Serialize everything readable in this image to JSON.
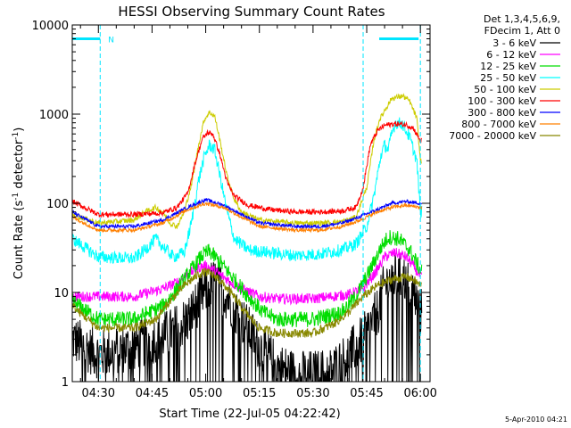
{
  "chart_data": {
    "type": "line",
    "title": "HESSI Observing Summary Count Rates",
    "xlabel": "Start Time (22-Jul-05 04:22:42)",
    "ylabel_main": "Count Rate (s",
    "ylabel_sup1": "-1",
    "ylabel_mid": " detector",
    "ylabel_sup2": "-1",
    "ylabel_end": ")",
    "yscale": "log",
    "ylim": [
      1,
      10000
    ],
    "xlim_minutes": [
      -7.3,
      92.7
    ],
    "x_ticks": [
      {
        "minute": 0,
        "label": "04:30"
      },
      {
        "minute": 15,
        "label": "04:45"
      },
      {
        "minute": 30,
        "label": "05:00"
      },
      {
        "minute": 45,
        "label": "05:15"
      },
      {
        "minute": 60,
        "label": "05:30"
      },
      {
        "minute": 75,
        "label": "05:45"
      },
      {
        "minute": 90,
        "label": "06:00"
      }
    ],
    "y_ticks": [
      {
        "value": 1,
        "label": "1"
      },
      {
        "value": 10,
        "label": "10"
      },
      {
        "value": 100,
        "label": "100"
      },
      {
        "value": 1000,
        "label": "1000"
      },
      {
        "value": 10000,
        "label": "10000"
      }
    ],
    "legend": {
      "header_line1": "Det 1,3,4,5,6,9,",
      "header_line2": "FDecim 1, Att 0",
      "placement": "right"
    },
    "markers": {
      "night_label": "N",
      "night_bars": [
        [
          -7.3,
          0.5
        ],
        [
          78.5,
          89.5
        ]
      ],
      "dashed_lines": [
        -7.3,
        0.5,
        74.0,
        90.0
      ],
      "level": 7000
    },
    "series": [
      {
        "name": "3 - 6 keV",
        "color": "#000000",
        "noise": 0.28,
        "points": [
          [
            -7.3,
            3
          ],
          [
            0,
            2
          ],
          [
            10,
            2.5
          ],
          [
            20,
            3.5
          ],
          [
            25,
            5
          ],
          [
            28,
            8
          ],
          [
            31,
            12
          ],
          [
            33,
            13
          ],
          [
            36,
            9
          ],
          [
            40,
            5
          ],
          [
            45,
            2.5
          ],
          [
            50,
            1.5
          ],
          [
            55,
            1.2
          ],
          [
            60,
            1.2
          ],
          [
            65,
            1.3
          ],
          [
            70,
            2
          ],
          [
            74,
            3
          ],
          [
            78,
            6
          ],
          [
            80,
            12
          ],
          [
            83,
            15
          ],
          [
            86,
            14
          ],
          [
            88,
            10
          ],
          [
            90,
            6
          ]
        ]
      },
      {
        "name": "6 - 12 keV",
        "color": "#ff00ff",
        "noise": 0.06,
        "points": [
          [
            -7.3,
            9
          ],
          [
            0,
            9
          ],
          [
            10,
            9
          ],
          [
            18,
            11
          ],
          [
            22,
            13
          ],
          [
            25,
            16
          ],
          [
            28,
            19
          ],
          [
            30,
            20
          ],
          [
            32,
            18
          ],
          [
            36,
            14
          ],
          [
            40,
            11
          ],
          [
            45,
            9
          ],
          [
            50,
            8.5
          ],
          [
            60,
            8.5
          ],
          [
            70,
            9.5
          ],
          [
            74,
            11
          ],
          [
            78,
            18
          ],
          [
            80,
            25
          ],
          [
            83,
            28
          ],
          [
            86,
            25
          ],
          [
            88,
            20
          ],
          [
            90,
            15
          ]
        ]
      },
      {
        "name": "12 - 25 keV",
        "color": "#00dd00",
        "noise": 0.09,
        "points": [
          [
            -7.3,
            8
          ],
          [
            0,
            5
          ],
          [
            10,
            5
          ],
          [
            18,
            7
          ],
          [
            22,
            11
          ],
          [
            26,
            18
          ],
          [
            29,
            26
          ],
          [
            31,
            29
          ],
          [
            34,
            22
          ],
          [
            38,
            14
          ],
          [
            42,
            9
          ],
          [
            46,
            6
          ],
          [
            50,
            5
          ],
          [
            60,
            5
          ],
          [
            68,
            6
          ],
          [
            72,
            9
          ],
          [
            76,
            18
          ],
          [
            79,
            32
          ],
          [
            81,
            42
          ],
          [
            84,
            40
          ],
          [
            87,
            30
          ],
          [
            90,
            18
          ]
        ]
      },
      {
        "name": "25 - 50 keV",
        "color": "#00ffff",
        "noise": 0.07,
        "points": [
          [
            -7.3,
            40
          ],
          [
            0,
            25
          ],
          [
            10,
            24
          ],
          [
            13,
            30
          ],
          [
            16,
            40
          ],
          [
            18,
            33
          ],
          [
            21,
            25
          ],
          [
            24,
            28
          ],
          [
            26,
            60
          ],
          [
            28,
            180
          ],
          [
            29.5,
            320
          ],
          [
            31,
            450
          ],
          [
            32.5,
            400
          ],
          [
            34,
            200
          ],
          [
            36,
            80
          ],
          [
            38,
            40
          ],
          [
            42,
            30
          ],
          [
            48,
            28
          ],
          [
            55,
            26
          ],
          [
            62,
            27
          ],
          [
            68,
            30
          ],
          [
            72,
            35
          ],
          [
            75,
            55
          ],
          [
            77,
            120
          ],
          [
            79,
            350
          ],
          [
            80,
            450
          ],
          [
            81,
            400
          ],
          [
            82,
            600
          ],
          [
            83,
            800
          ],
          [
            85,
            780
          ],
          [
            87,
            550
          ],
          [
            89,
            300
          ],
          [
            90,
            80
          ]
        ]
      },
      {
        "name": "50 - 100 keV",
        "color": "#cccc00",
        "noise": 0.03,
        "points": [
          [
            -7.3,
            75
          ],
          [
            0,
            60
          ],
          [
            10,
            65
          ],
          [
            13,
            80
          ],
          [
            16,
            90
          ],
          [
            18,
            80
          ],
          [
            20,
            60
          ],
          [
            22,
            55
          ],
          [
            24,
            80
          ],
          [
            26,
            160
          ],
          [
            28,
            450
          ],
          [
            29.5,
            850
          ],
          [
            31,
            1050
          ],
          [
            32.5,
            950
          ],
          [
            34,
            500
          ],
          [
            36,
            200
          ],
          [
            38,
            110
          ],
          [
            40,
            80
          ],
          [
            45,
            65
          ],
          [
            55,
            60
          ],
          [
            62,
            60
          ],
          [
            68,
            62
          ],
          [
            72,
            70
          ],
          [
            75,
            150
          ],
          [
            77,
            500
          ],
          [
            78.5,
            850
          ],
          [
            80,
            1100
          ],
          [
            82,
            1500
          ],
          [
            85,
            1600
          ],
          [
            87,
            1400
          ],
          [
            89,
            900
          ],
          [
            90,
            300
          ]
        ]
      },
      {
        "name": "100 - 300 keV",
        "color": "#ff0000",
        "noise": 0.03,
        "points": [
          [
            -7.3,
            105
          ],
          [
            0,
            75
          ],
          [
            10,
            75
          ],
          [
            18,
            78
          ],
          [
            22,
            90
          ],
          [
            25,
            130
          ],
          [
            27,
            280
          ],
          [
            29,
            520
          ],
          [
            30.5,
            620
          ],
          [
            32,
            600
          ],
          [
            34,
            350
          ],
          [
            36,
            170
          ],
          [
            38,
            120
          ],
          [
            42,
            95
          ],
          [
            48,
            85
          ],
          [
            55,
            80
          ],
          [
            62,
            80
          ],
          [
            68,
            82
          ],
          [
            72,
            90
          ],
          [
            74,
            150
          ],
          [
            76,
            450
          ],
          [
            78,
            650
          ],
          [
            80,
            750
          ],
          [
            83,
            780
          ],
          [
            86,
            760
          ],
          [
            88,
            700
          ],
          [
            90,
            500
          ]
        ]
      },
      {
        "name": "300 - 800 keV",
        "color": "#0000ff",
        "noise": 0.02,
        "points": [
          [
            -7.3,
            80
          ],
          [
            0,
            55
          ],
          [
            10,
            55
          ],
          [
            18,
            65
          ],
          [
            25,
            90
          ],
          [
            30,
            110
          ],
          [
            35,
            95
          ],
          [
            40,
            75
          ],
          [
            45,
            60
          ],
          [
            55,
            55
          ],
          [
            62,
            55
          ],
          [
            68,
            60
          ],
          [
            72,
            68
          ],
          [
            78,
            85
          ],
          [
            82,
            100
          ],
          [
            86,
            105
          ],
          [
            90,
            100
          ]
        ]
      },
      {
        "name": "800 - 7000 keV",
        "color": "#ff8000",
        "noise": 0.02,
        "points": [
          [
            -7.3,
            70
          ],
          [
            0,
            50
          ],
          [
            10,
            50
          ],
          [
            18,
            60
          ],
          [
            25,
            85
          ],
          [
            30,
            100
          ],
          [
            35,
            90
          ],
          [
            40,
            70
          ],
          [
            45,
            55
          ],
          [
            55,
            50
          ],
          [
            62,
            50
          ],
          [
            68,
            55
          ],
          [
            72,
            62
          ],
          [
            78,
            80
          ],
          [
            82,
            90
          ],
          [
            86,
            95
          ],
          [
            90,
            90
          ]
        ]
      },
      {
        "name": "7000 - 20000 keV",
        "color": "#888800",
        "noise": 0.05,
        "points": [
          [
            -7.3,
            7
          ],
          [
            0,
            4
          ],
          [
            10,
            4
          ],
          [
            16,
            5
          ],
          [
            20,
            8
          ],
          [
            24,
            12
          ],
          [
            28,
            16
          ],
          [
            30,
            17
          ],
          [
            33,
            15
          ],
          [
            37,
            10
          ],
          [
            41,
            6
          ],
          [
            45,
            4
          ],
          [
            50,
            3.5
          ],
          [
            60,
            3.5
          ],
          [
            66,
            4.5
          ],
          [
            70,
            6
          ],
          [
            74,
            9
          ],
          [
            78,
            12
          ],
          [
            82,
            14
          ],
          [
            86,
            15
          ],
          [
            88,
            14
          ],
          [
            90,
            12
          ]
        ]
      }
    ]
  },
  "footer": {
    "date_stamp": "5-Apr-2010 04:21"
  }
}
